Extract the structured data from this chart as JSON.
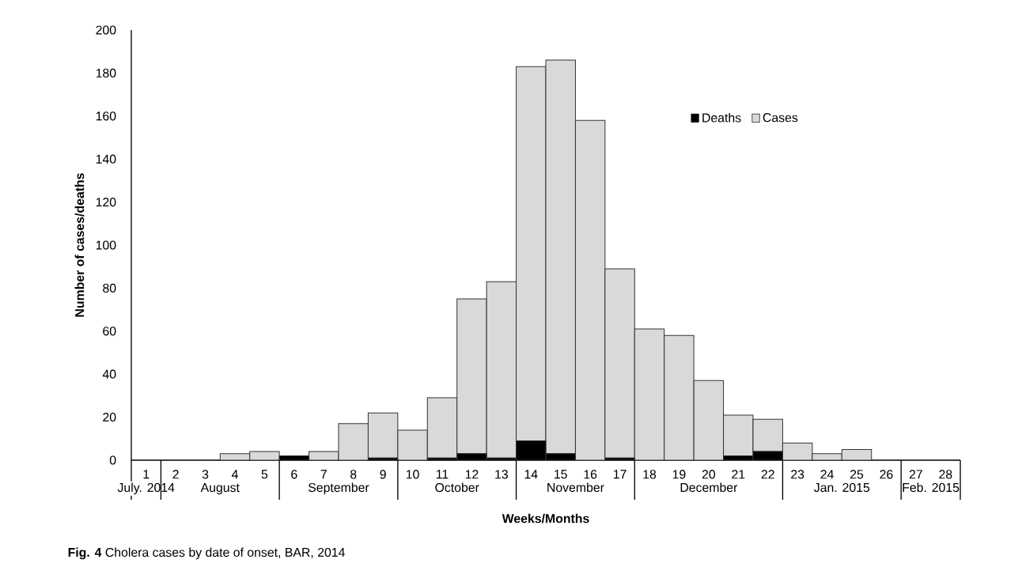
{
  "chart_data": {
    "type": "bar",
    "stacked": true,
    "xlabel": "Weeks/Months",
    "ylabel": "Number of cases/deaths",
    "categories": [
      "1",
      "2",
      "3",
      "4",
      "5",
      "6",
      "7",
      "8",
      "9",
      "10",
      "11",
      "12",
      "13",
      "14",
      "15",
      "16",
      "17",
      "18",
      "19",
      "20",
      "21",
      "22",
      "23",
      "24",
      "25",
      "26",
      "27",
      "28"
    ],
    "series": [
      {
        "name": "Deaths",
        "color": "#000000",
        "values": [
          0,
          0,
          0,
          0,
          0,
          2,
          0,
          0,
          1,
          0,
          1,
          3,
          1,
          9,
          3,
          0,
          1,
          0,
          0,
          0,
          2,
          4,
          0,
          0,
          0,
          0,
          0,
          0
        ]
      },
      {
        "name": "Cases",
        "color": "#d9d9d9",
        "values": [
          0,
          0,
          0,
          3,
          4,
          0,
          4,
          17,
          21,
          14,
          28,
          72,
          82,
          174,
          183,
          158,
          88,
          61,
          58,
          37,
          19,
          15,
          8,
          3,
          5,
          0,
          0,
          0
        ]
      }
    ],
    "ylim": [
      0,
      200
    ],
    "yticks": [
      0,
      20,
      40,
      60,
      80,
      100,
      120,
      140,
      160,
      180,
      200
    ],
    "grid": false,
    "legend": "top right",
    "annotations": [
      "July. 2014",
      "August",
      "September",
      "October",
      "November",
      "December",
      "Jan. 2015",
      "Feb. 2015",
      "**Fig. 4** Cholera cases by date of onset, BAR, 2014"
    ]
  }
}
